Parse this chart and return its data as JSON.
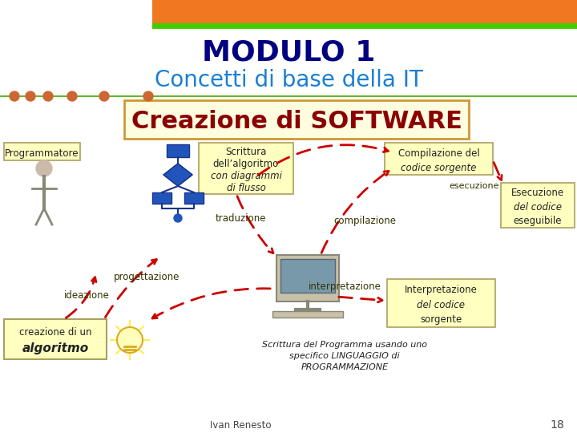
{
  "bg_color": "#ffffff",
  "header_orange": "#f07820",
  "header_green": "#44cc00",
  "title1": "MODULO 1",
  "title1_color": "#000080",
  "title2": "Concetti di base della IT",
  "title2_color": "#1a7fd4",
  "banner_color": "#fffde0",
  "banner_border": "#cc9933",
  "banner_text": "Creazione di SOFTWARE",
  "banner_text_color": "#8b0000",
  "dot_color": "#cc6633",
  "line_color": "#44aa00",
  "box_color": "#ffffc0",
  "box_border": "#aaa060",
  "arrow_color": "#cc0000",
  "label_color": "#333300",
  "footer_author": "Ivan Renesto",
  "footer_page": "18"
}
